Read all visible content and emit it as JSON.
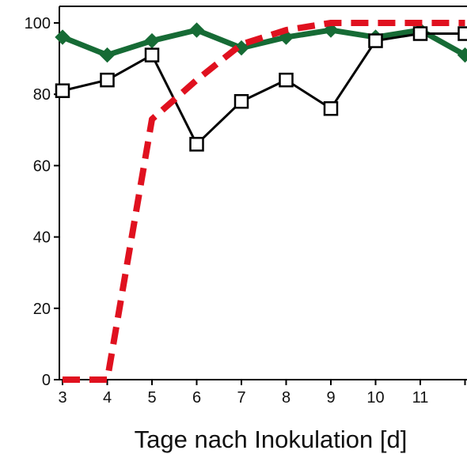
{
  "chart_data": {
    "type": "line",
    "title": "",
    "xlabel": "Tage nach Inokulation [d]",
    "ylabel": "",
    "x": [
      3,
      4,
      5,
      6,
      7,
      8,
      9,
      10,
      11,
      12
    ],
    "x_tick_labels": [
      "3",
      "4",
      "5",
      "6",
      "7",
      "8",
      "9",
      "10",
      "11"
    ],
    "y_tick_labels": [
      "0",
      "20",
      "40",
      "60",
      "80",
      "100"
    ],
    "xlim": [
      2.9,
      12
    ],
    "ylim": [
      0,
      105
    ],
    "grid": false,
    "legend": "none",
    "series": [
      {
        "key": "red",
        "style": "dashed",
        "marker": "none",
        "color": "#e0111f",
        "values": [
          0,
          0,
          73,
          84,
          94,
          98,
          100,
          100,
          100,
          100
        ]
      },
      {
        "key": "green",
        "style": "solid",
        "marker": "diamond",
        "color": "#166b35",
        "values": [
          96,
          91,
          95,
          98,
          93,
          96,
          98,
          96,
          98,
          91
        ]
      },
      {
        "key": "black",
        "style": "solid",
        "marker": "open-square",
        "color": "#000000",
        "values": [
          81,
          84,
          91,
          66,
          78,
          84,
          76,
          95,
          97,
          97
        ]
      }
    ]
  }
}
